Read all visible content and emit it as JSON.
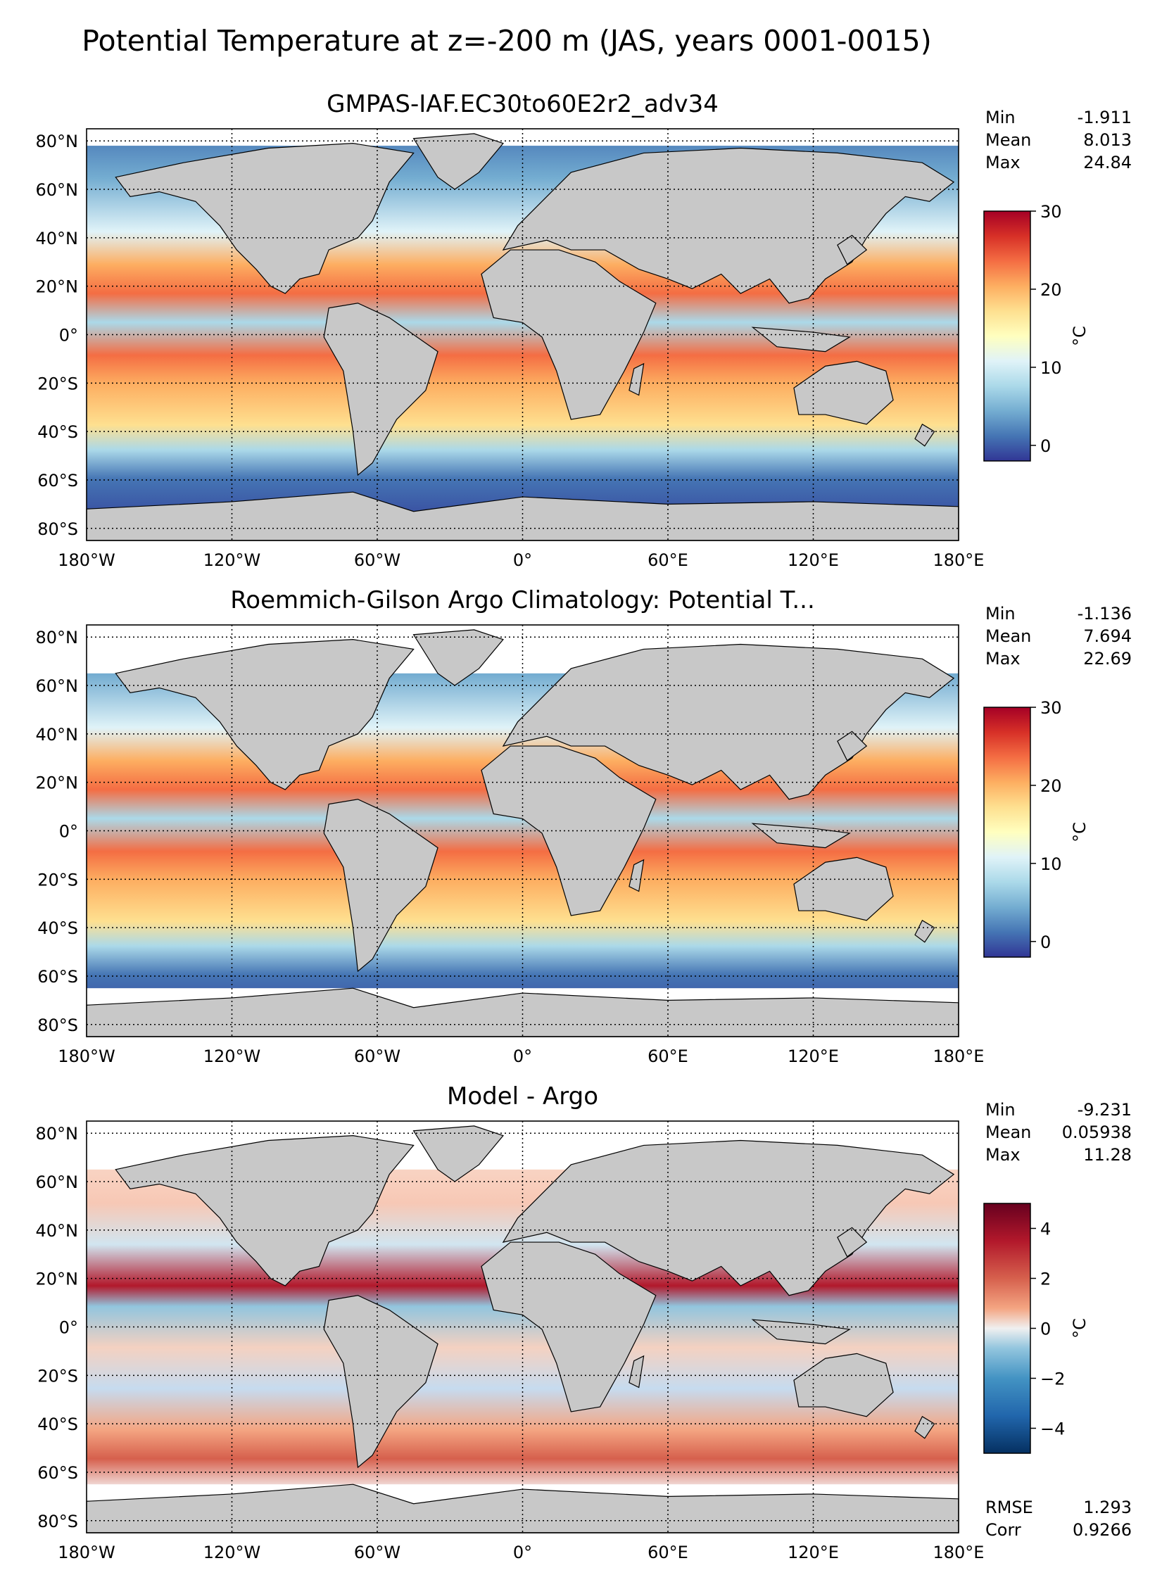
{
  "figure": {
    "suptitle": "Potential Temperature at z=-200 m (JAS, years 0001-0015)"
  },
  "axes": {
    "lon_ticks": [
      "180°W",
      "120°W",
      "60°W",
      "0°",
      "60°E",
      "120°E",
      "180°E"
    ],
    "lat_ticks": [
      "80°N",
      "60°N",
      "40°N",
      "20°N",
      "0°",
      "20°S",
      "40°S",
      "60°S",
      "80°S"
    ]
  },
  "colors": {
    "land": "#c8c8c8",
    "missing": "#ffffff",
    "coast": "#000000",
    "grid": "#000000"
  },
  "chart_data": [
    {
      "type": "heatmap",
      "title": "GMPAS-IAF.EC30to60E2r2_adv34",
      "stats": [
        {
          "label": "Min",
          "value": "-1.911"
        },
        {
          "label": "Mean",
          "value": "8.013"
        },
        {
          "label": "Max",
          "value": "24.84"
        }
      ],
      "colorbar": {
        "label": "°C",
        "range": [
          -2,
          30
        ],
        "ticks": [
          "0",
          "10",
          "20",
          "30"
        ],
        "tick_values": [
          0,
          10,
          20,
          30
        ],
        "cmap": "RdYlBu_r"
      },
      "xlim": [
        -180,
        180
      ],
      "ylim": [
        -85,
        85
      ]
    },
    {
      "type": "heatmap",
      "title": "Roemmich-Gilson Argo Climatology: Potential T...",
      "stats": [
        {
          "label": "Min",
          "value": "-1.136"
        },
        {
          "label": "Mean",
          "value": "7.694"
        },
        {
          "label": "Max",
          "value": "22.69"
        }
      ],
      "colorbar": {
        "label": "°C",
        "range": [
          -2,
          30
        ],
        "ticks": [
          "0",
          "10",
          "20",
          "30"
        ],
        "tick_values": [
          0,
          10,
          20,
          30
        ],
        "cmap": "RdYlBu_r"
      },
      "xlim": [
        -180,
        180
      ],
      "ylim": [
        -85,
        85
      ]
    },
    {
      "type": "heatmap",
      "title": "Model - Argo",
      "stats": [
        {
          "label": "Min",
          "value": "-9.231"
        },
        {
          "label": "Mean",
          "value": "0.05938"
        },
        {
          "label": "Max",
          "value": "11.28"
        }
      ],
      "extra_stats": [
        {
          "label": "RMSE",
          "value": "1.293"
        },
        {
          "label": "Corr",
          "value": "0.9266"
        }
      ],
      "colorbar": {
        "label": "°C",
        "range": [
          -5,
          5
        ],
        "ticks": [
          "4",
          "2",
          "0",
          "−2",
          "−4"
        ],
        "tick_values": [
          4,
          2,
          0,
          -2,
          -4
        ],
        "cmap": "RdBu_r"
      },
      "xlim": [
        -180,
        180
      ],
      "ylim": [
        -85,
        85
      ]
    }
  ]
}
